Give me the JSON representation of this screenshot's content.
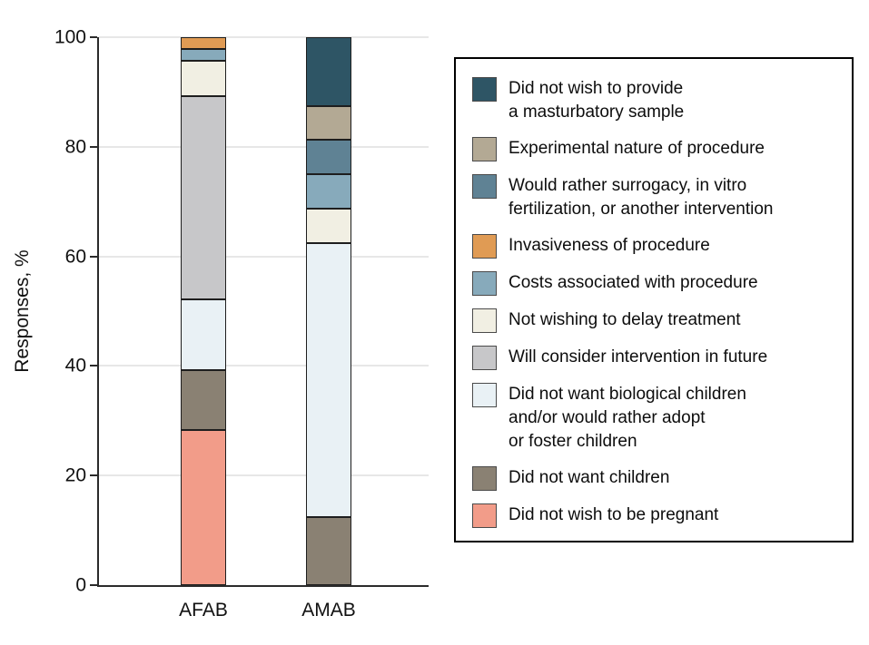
{
  "chart_data": {
    "type": "bar",
    "stacked": true,
    "stack_order": "bottom-to-top",
    "title": "",
    "xlabel": "",
    "ylabel": "Responses, %",
    "ylim": [
      0,
      100
    ],
    "yticks": [
      0,
      20,
      40,
      60,
      80,
      100
    ],
    "grid": "horizontal",
    "legend_position": "right",
    "categories": [
      "AFAB",
      "AMAB"
    ],
    "series": [
      {
        "name": "Did not wish to be pregnant",
        "color": "#F29C89",
        "values": [
          28.3,
          0
        ]
      },
      {
        "name": "Did not want children",
        "color": "#8A8173",
        "values": [
          10.9,
          12.5
        ]
      },
      {
        "name": "Did not want biological children and/or would rather adopt or foster children",
        "color": "#E9F1F5",
        "values": [
          13.0,
          50.0
        ]
      },
      {
        "name": "Will consider intervention in future",
        "color": "#C7C7C9",
        "values": [
          37.0,
          0
        ]
      },
      {
        "name": "Not wishing to delay treatment",
        "color": "#F1EFE3",
        "values": [
          6.5,
          6.25
        ]
      },
      {
        "name": "Costs associated with procedure",
        "color": "#87AABB",
        "values": [
          2.2,
          6.25
        ]
      },
      {
        "name": "Invasiveness of procedure",
        "color": "#E09B54",
        "values": [
          2.1,
          0
        ]
      },
      {
        "name": "Would rather surrogacy, in vitro fertilization, or another intervention",
        "color": "#5F8294",
        "values": [
          0,
          6.25
        ]
      },
      {
        "name": "Experimental nature of procedure",
        "color": "#B3A994",
        "values": [
          0,
          6.25
        ]
      },
      {
        "name": "Did not wish to provide a masturbatory sample",
        "color": "#2E5565",
        "values": [
          0,
          12.5
        ]
      }
    ]
  },
  "axis": {
    "y_title": "Responses, %",
    "y_tick_labels": [
      "0",
      "20",
      "40",
      "60",
      "80",
      "100"
    ],
    "x_tick_labels": [
      "AFAB",
      "AMAB"
    ]
  },
  "legend": {
    "items": [
      {
        "label": "Did not wish to provide\na masturbatory sample",
        "color": "#2E5565"
      },
      {
        "label": "Experimental nature of procedure",
        "color": "#B3A994"
      },
      {
        "label": "Would rather surrogacy, in vitro\nfertilization, or another intervention",
        "color": "#5F8294"
      },
      {
        "label": "Invasiveness of procedure",
        "color": "#E09B54"
      },
      {
        "label": "Costs associated with procedure",
        "color": "#87AABB"
      },
      {
        "label": "Not wishing to delay treatment",
        "color": "#F1EFE3"
      },
      {
        "label": "Will consider intervention in future",
        "color": "#C7C7C9"
      },
      {
        "label": "Did not want biological children\nand/or would rather adopt\nor foster children",
        "color": "#E9F1F5"
      },
      {
        "label": "Did not want children",
        "color": "#8A8173"
      },
      {
        "label": "Did not wish to be pregnant",
        "color": "#F29C89"
      }
    ]
  },
  "colors": {
    "axis": "#2b2b2b",
    "gridline": "#e7e7e7",
    "segment_border": "#1e1e1e",
    "legend_border": "#000000",
    "background": "#ffffff"
  }
}
